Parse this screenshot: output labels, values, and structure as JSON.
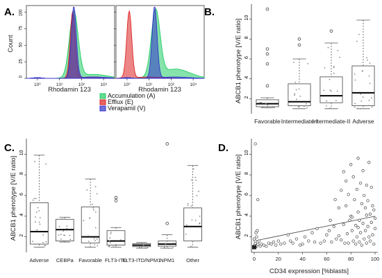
{
  "figure": {
    "panel_labels": [
      "A.",
      "B.",
      "C.",
      "D."
    ]
  },
  "colors": {
    "accumulation": "#22cc66",
    "efflux": "#dd2222",
    "verapamil": "#3333cc",
    "box_stroke": "#555555",
    "dots": "#444444"
  },
  "chart_data": [
    {
      "id": "A",
      "type": "area",
      "subtype": "flow cytometry histogram overlay (two sub-panels)",
      "ylabel": "Count",
      "xlabel": "Rhodamin 123",
      "xscale": "log",
      "xtick_labels": [
        "10⁰",
        "10¹",
        "10²",
        "10³"
      ],
      "left_ytick_labels": [
        "0",
        "25",
        "50",
        "75",
        "100"
      ],
      "right_ytick_labels": [
        "0",
        "25",
        "50",
        "75",
        "100"
      ],
      "ylim": [
        0,
        110
      ],
      "legend_position": "bottom-center",
      "series": [
        {
          "name": "Accumulation (A)",
          "color": "#22cc66"
        },
        {
          "name": "Efflux (E)",
          "color": "#dd2222"
        },
        {
          "name": "Verapamil (V)",
          "color": "#3333cc"
        }
      ],
      "sub_panels": [
        {
          "peaks": {
            "accumulation": {
              "log_center": 1.85,
              "height": 100
            },
            "efflux": {
              "log_center": 1.8,
              "height": 100
            },
            "verapamil": {
              "log_center": 1.85,
              "height": 108
            }
          }
        },
        {
          "peaks": {
            "accumulation": {
              "log_center": 1.5,
              "height": 100
            },
            "efflux": {
              "log_center": 0.3,
              "height": 100
            },
            "verapamil": {
              "log_center": 1.45,
              "height": 108
            }
          }
        }
      ]
    },
    {
      "id": "B",
      "type": "box",
      "ylabel": "ABCB1 phenotype [V/E ratio]",
      "ylim": [
        0.5,
        11.5
      ],
      "yticks": [
        2,
        4,
        6,
        8,
        10
      ],
      "categories": [
        "Favorable",
        "Intermediate-I",
        "Intermediate-II",
        "Adverse"
      ],
      "boxes": [
        {
          "q1": 1.2,
          "median": 1.5,
          "q3": 1.9,
          "whisker_low": 1.1,
          "whisker_high": 2.1,
          "outliers": [
            3.3,
            5.5,
            6.5,
            7.0,
            11.0
          ]
        },
        {
          "q1": 1.3,
          "median": 1.7,
          "q3": 3.5,
          "whisker_low": 1.0,
          "whisker_high": 6.0,
          "outliers": [
            7.4,
            8.0
          ]
        },
        {
          "q1": 1.6,
          "median": 2.3,
          "q3": 4.2,
          "whisker_low": 1.0,
          "whisker_high": 7.6,
          "outliers": [
            8.8
          ]
        },
        {
          "q1": 1.3,
          "median": 2.6,
          "q3": 5.3,
          "whisker_low": 1.0,
          "whisker_high": 9.9,
          "outliers": []
        }
      ]
    },
    {
      "id": "C",
      "type": "box",
      "ylabel": "ABCB1 phenotype [V/E ratio]",
      "ylim": [
        0.5,
        11.5
      ],
      "yticks": [
        2,
        4,
        6,
        8,
        10
      ],
      "categories": [
        "Adverse",
        "CEBPa",
        "Favorable",
        "FLT3-ITD",
        "FLT3-ITD/NPM1",
        "NPM1",
        "Other"
      ],
      "boxes": [
        {
          "q1": 1.3,
          "median": 2.5,
          "q3": 5.3,
          "whisker_low": 1.0,
          "whisker_high": 9.9,
          "outliers": []
        },
        {
          "q1": 1.6,
          "median": 2.7,
          "q3": 3.7,
          "whisker_low": 1.5,
          "whisker_high": 3.9,
          "outliers": []
        },
        {
          "q1": 1.4,
          "median": 2.0,
          "q3": 4.9,
          "whisker_low": 1.0,
          "whisker_high": 7.6,
          "outliers": []
        },
        {
          "q1": 1.2,
          "median": 1.6,
          "q3": 2.6,
          "whisker_low": 1.0,
          "whisker_high": 2.9,
          "outliers": [
            5.5,
            5.8
          ]
        },
        {
          "q1": 1.05,
          "median": 1.2,
          "q3": 1.35,
          "whisker_low": 0.9,
          "whisker_high": 1.45,
          "outliers": []
        },
        {
          "q1": 1.1,
          "median": 1.3,
          "q3": 1.6,
          "whisker_low": 0.9,
          "whisker_high": 2.2,
          "outliers": [
            3.3,
            11.0
          ]
        },
        {
          "q1": 1.6,
          "median": 3.0,
          "q3": 4.8,
          "whisker_low": 1.0,
          "whisker_high": 8.9,
          "outliers": []
        }
      ]
    },
    {
      "id": "D",
      "type": "scatter",
      "xlabel": "CD34 expression [%blasts]",
      "ylabel": "ABCB1 phenotype [V/E ratio]",
      "xlim": [
        0,
        100
      ],
      "ylim": [
        0.5,
        11.5
      ],
      "xticks": [
        0,
        20,
        40,
        60,
        80,
        100
      ],
      "yticks": [
        2,
        4,
        6,
        8,
        10
      ],
      "regression_line": {
        "x0": 0,
        "y0": 1.6,
        "x1": 100,
        "y1": 4.0
      },
      "points": [
        [
          1,
          11.0
        ],
        [
          3,
          5.6
        ],
        [
          0.5,
          1.2
        ],
        [
          1,
          1.4
        ],
        [
          2,
          1.1
        ],
        [
          0.8,
          1.6
        ],
        [
          1.5,
          2.4
        ],
        [
          2,
          2.0
        ],
        [
          3,
          1.3
        ],
        [
          1,
          1.0
        ],
        [
          4,
          1.6
        ],
        [
          5,
          1.1
        ],
        [
          6,
          1.3
        ],
        [
          0,
          1.8
        ],
        [
          2.5,
          2.6
        ],
        [
          8,
          1.2
        ],
        [
          10,
          1.1
        ],
        [
          12,
          1.4
        ],
        [
          14,
          1.3
        ],
        [
          16,
          1.5
        ],
        [
          18,
          1.2
        ],
        [
          20,
          1.6
        ],
        [
          22,
          1.3
        ],
        [
          25,
          1.4
        ],
        [
          28,
          2.2
        ],
        [
          30,
          1.6
        ],
        [
          32,
          1.4
        ],
        [
          35,
          1.8
        ],
        [
          38,
          1.2
        ],
        [
          40,
          1.3
        ],
        [
          42,
          2.0
        ],
        [
          45,
          1.6
        ],
        [
          48,
          2.4
        ],
        [
          50,
          1.5
        ],
        [
          52,
          2.8
        ],
        [
          55,
          1.4
        ],
        [
          58,
          1.6
        ],
        [
          60,
          2.2
        ],
        [
          62,
          2.6
        ],
        [
          64,
          1.5
        ],
        [
          66,
          3.0
        ],
        [
          68,
          1.8
        ],
        [
          70,
          2.1
        ],
        [
          70,
          4.8
        ],
        [
          72,
          6.5
        ],
        [
          72,
          1.7
        ],
        [
          74,
          8.3
        ],
        [
          74,
          3.2
        ],
        [
          75,
          1.4
        ],
        [
          76,
          5.0
        ],
        [
          77,
          2.3
        ],
        [
          78,
          6.1
        ],
        [
          78,
          1.4
        ],
        [
          79,
          3.6
        ],
        [
          80,
          9.0
        ],
        [
          80,
          4.0
        ],
        [
          81,
          2.6
        ],
        [
          82,
          7.8
        ],
        [
          82,
          1.6
        ],
        [
          83,
          5.6
        ],
        [
          84,
          3.1
        ],
        [
          84,
          1.3
        ],
        [
          85,
          6.6
        ],
        [
          85,
          2.0
        ],
        [
          86,
          9.6
        ],
        [
          86,
          4.4
        ],
        [
          87,
          1.5
        ],
        [
          87,
          3.6
        ],
        [
          88,
          7.2
        ],
        [
          88,
          2.4
        ],
        [
          89,
          5.2
        ],
        [
          89,
          1.2
        ],
        [
          90,
          8.4
        ],
        [
          90,
          3.3
        ],
        [
          91,
          6.0
        ],
        [
          91,
          1.8
        ],
        [
          92,
          4.8
        ],
        [
          92,
          2.6
        ],
        [
          93,
          7.0
        ],
        [
          93,
          1.4
        ],
        [
          94,
          5.5
        ],
        [
          94,
          3.0
        ],
        [
          95,
          9.2
        ],
        [
          95,
          2.0
        ],
        [
          96,
          4.2
        ],
        [
          96,
          1.6
        ],
        [
          97,
          6.8
        ],
        [
          97,
          3.4
        ],
        [
          98,
          2.2
        ],
        [
          98,
          5.0
        ],
        [
          99,
          1.3
        ],
        [
          99,
          4.6
        ],
        [
          100,
          3.8
        ],
        [
          100,
          2.8
        ],
        [
          76,
          7.4
        ],
        [
          81,
          3.9
        ],
        [
          86,
          2.9
        ],
        [
          93,
          4.1
        ],
        [
          67,
          5.6
        ],
        [
          63,
          3.6
        ]
      ]
    }
  ]
}
